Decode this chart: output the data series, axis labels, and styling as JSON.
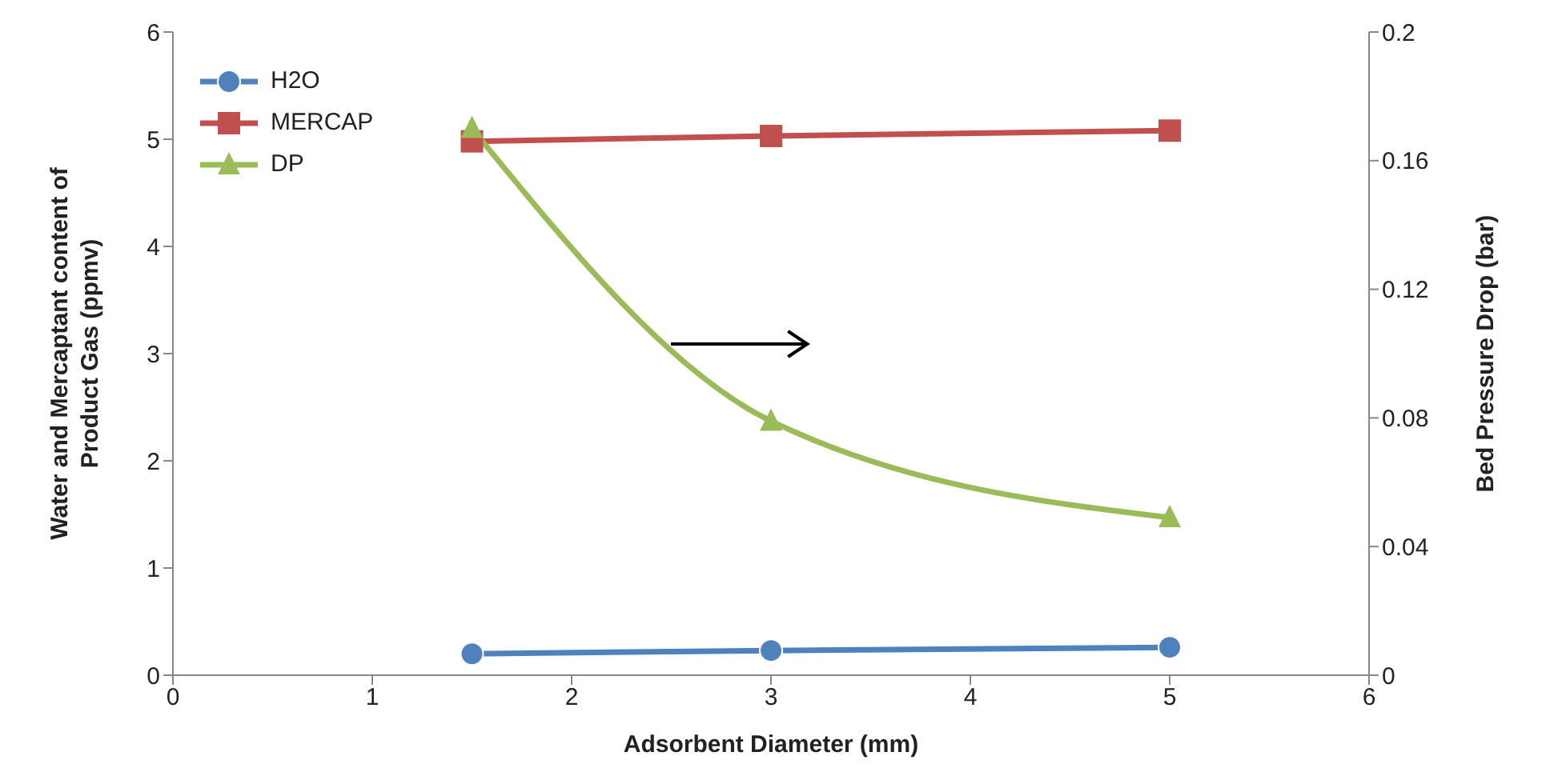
{
  "chart_data": {
    "type": "line",
    "xlabel": "Adsorbent Diameter (mm)",
    "ylabel": "Water and Mercaptant content of\nProduct  Gas (ppmv)",
    "y2label": "Bed Pressure Drop (bar)",
    "x": [
      1.5,
      3,
      5
    ],
    "series": [
      {
        "name": "H2O",
        "color": "#4f81bd",
        "marker": "circle",
        "values": [
          0.2,
          0.23,
          0.26
        ]
      },
      {
        "name": "MERCAP",
        "color": "#c0504d",
        "marker": "square",
        "values": [
          4.98,
          5.03,
          5.08
        ]
      },
      {
        "name": "DP",
        "color": "#9bbb59",
        "marker": "triangle",
        "axis": "y2",
        "values": [
          0.17,
          0.079,
          0.049
        ]
      }
    ],
    "xlim": [
      0,
      6
    ],
    "xticks": [
      0,
      1,
      2,
      3,
      4,
      5,
      6
    ],
    "ylim": [
      0,
      6
    ],
    "yticks": [
      0,
      1,
      2,
      3,
      4,
      5,
      6
    ],
    "y2lim": [
      0,
      0.2
    ],
    "y2ticks": [
      0,
      0.04,
      0.08,
      0.12,
      0.16,
      0.2
    ],
    "grid": false,
    "legend": "top left",
    "line_style": "solid"
  }
}
